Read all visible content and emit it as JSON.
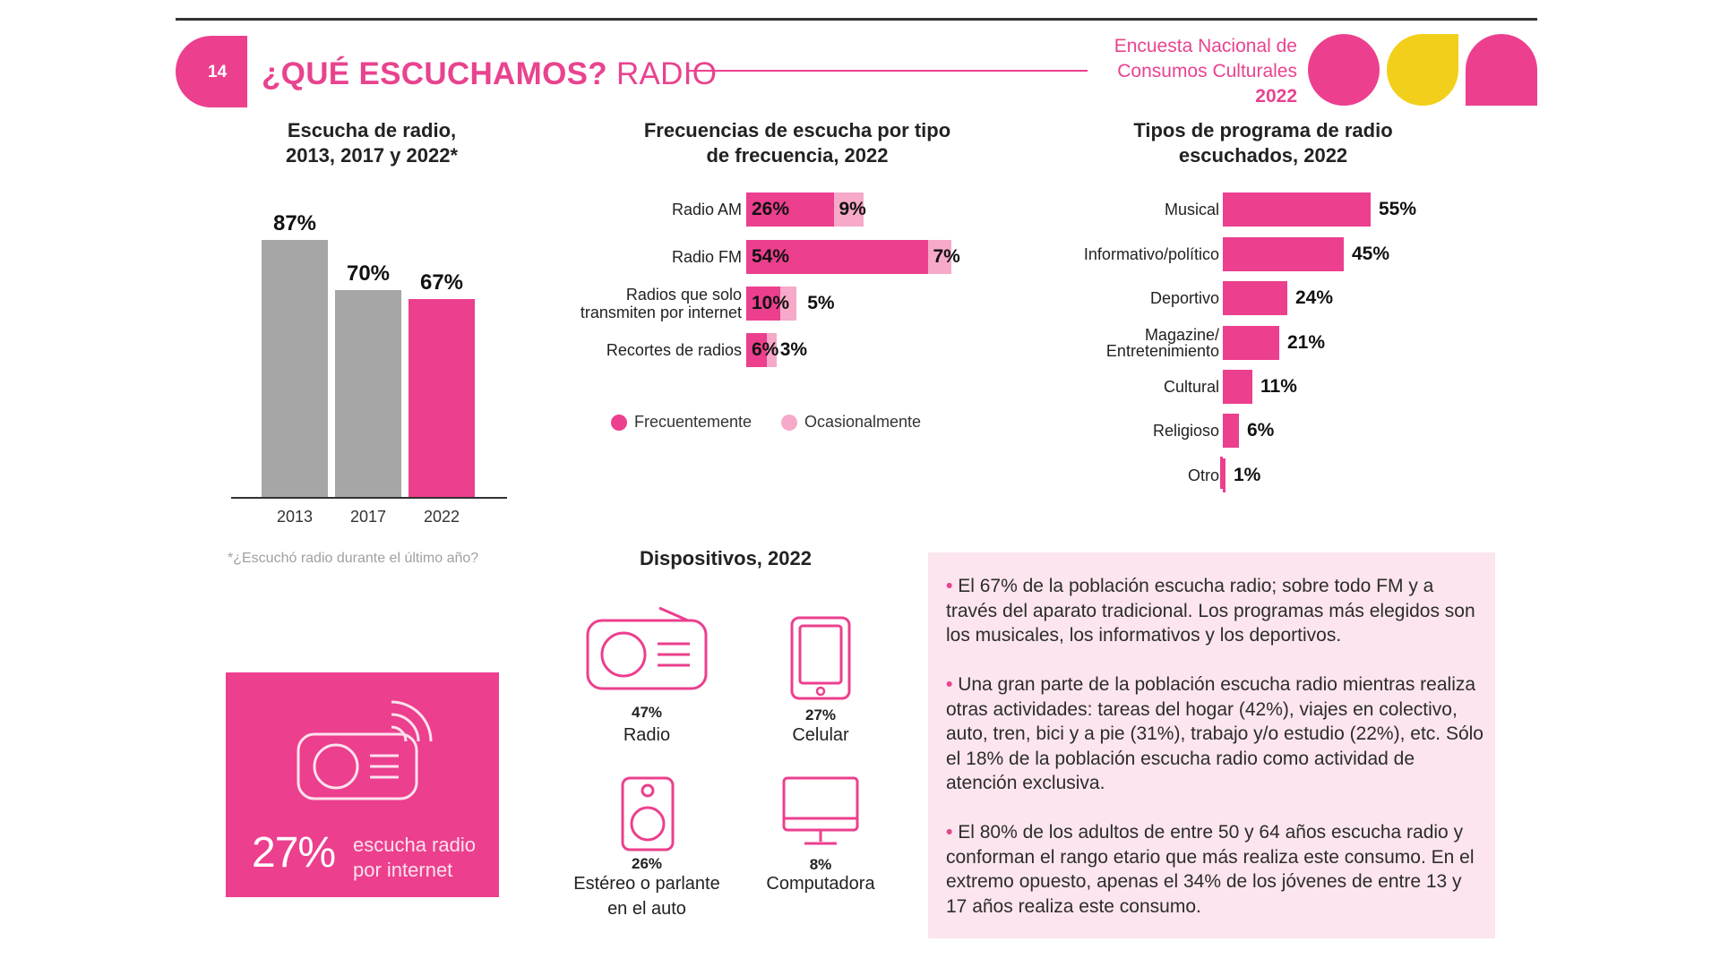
{
  "header": {
    "page_number": "14",
    "title_bold": "¿QUÉ ESCUCHAMOS?",
    "title_rest": " RADIO",
    "brand_line1": "Encuesta Nacional de",
    "brand_line2": "Consumos Culturales",
    "brand_year": "2022"
  },
  "colors": {
    "pink": "#ec3f8e",
    "light_pink": "#f6a9c9",
    "gray": "#a6a6a6",
    "yellow": "#f2cf1b",
    "note_bg": "#fce5ee"
  },
  "chart_data": [
    {
      "type": "bar",
      "title": "Escucha de radio, 2013, 2017 y 2022*",
      "title_line1": "Escucha de radio,",
      "title_line2": "2013, 2017 y 2022*",
      "categories": [
        "2013",
        "2017",
        "2022"
      ],
      "values": [
        87,
        70,
        67
      ],
      "labels": [
        "87%",
        "70%",
        "67%"
      ],
      "bar_colors": [
        "gray",
        "gray",
        "pink"
      ],
      "ylim": [
        0,
        100
      ],
      "footnote": "*¿Escuchó radio durante el último año?"
    },
    {
      "type": "bar",
      "orientation": "horizontal",
      "stacked": true,
      "title": "Frecuencias de escucha por tipo de frecuencia, 2022",
      "title_line1": "Frecuencias de escucha por tipo",
      "title_line2": "de frecuencia, 2022",
      "categories": [
        "Radio AM",
        "Radio FM",
        "Radios que solo transmiten por internet",
        "Recortes de radios"
      ],
      "category_lines": [
        [
          "Radio AM"
        ],
        [
          "Radio FM"
        ],
        [
          "Radios que solo",
          "transmiten por internet"
        ],
        [
          "Recortes de radios"
        ]
      ],
      "series": [
        {
          "name": "Frecuentemente",
          "values": [
            26,
            54,
            10,
            6
          ],
          "labels": [
            "26%",
            "54%",
            "10%",
            "6%"
          ]
        },
        {
          "name": "Ocasionalmente",
          "values": [
            9,
            7,
            5,
            3
          ],
          "labels": [
            "9%",
            "7%",
            "5%",
            "3%"
          ]
        }
      ],
      "legend": [
        "Frecuentemente",
        "Ocasionalmente"
      ],
      "xlim": [
        0,
        65
      ]
    },
    {
      "type": "bar",
      "orientation": "horizontal",
      "title": "Tipos de programa de radio escuchados, 2022",
      "title_line1": "Tipos de programa de radio",
      "title_line2": "escuchados, 2022",
      "categories": [
        "Musical",
        "Informativo/político",
        "Deportivo",
        "Magazine/ Entretenimiento",
        "Cultural",
        "Religioso",
        "Otro"
      ],
      "category_lines": [
        [
          "Musical"
        ],
        [
          "Informativo/político"
        ],
        [
          "Deportivo"
        ],
        [
          "Magazine/",
          "Entretenimiento"
        ],
        [
          "Cultural"
        ],
        [
          "Religioso"
        ],
        [
          "Otro"
        ]
      ],
      "values": [
        55,
        45,
        24,
        21,
        11,
        6,
        1
      ],
      "labels": [
        "55%",
        "45%",
        "24%",
        "21%",
        "11%",
        "6%",
        "1%"
      ],
      "xlim": [
        0,
        60
      ]
    }
  ],
  "devices": {
    "title": "Dispositivos, 2022",
    "items": [
      {
        "icon": "radio-icon",
        "value": "47%",
        "name_line1": "Radio",
        "name_line2": ""
      },
      {
        "icon": "phone-icon",
        "value": "27%",
        "name_line1": "Celular",
        "name_line2": ""
      },
      {
        "icon": "speaker-icon",
        "value": "26%",
        "name_line1": "Estéreo o parlante",
        "name_line2": "en el auto"
      },
      {
        "icon": "computer-icon",
        "value": "8%",
        "name_line1": "Computadora",
        "name_line2": ""
      }
    ]
  },
  "highlight": {
    "percent": "27%",
    "text_line1": "escucha radio",
    "text_line2": "por internet",
    "icon": "internet-radio-icon"
  },
  "notes": [
    "El 67% de la población escucha radio; sobre todo FM y a través del aparato tradicional. Los programas más elegidos son los musicales, los informativos y los deportivos.",
    "Una gran parte de la población escucha radio mientras realiza otras actividades: tareas del hogar (42%), viajes en colectivo, auto, tren, bici y a pie (31%), trabajo y/o estudio (22%), etc. Sólo el 18% de la población escucha radio como actividad de atención exclusiva.",
    "El 80% de los adultos de entre 50 y 64 años escucha radio y conforman el rango etario que más realiza este consumo. En el extremo opuesto, apenas el 34% de los jóvenes de entre 13 y 17 años realiza este consumo."
  ]
}
